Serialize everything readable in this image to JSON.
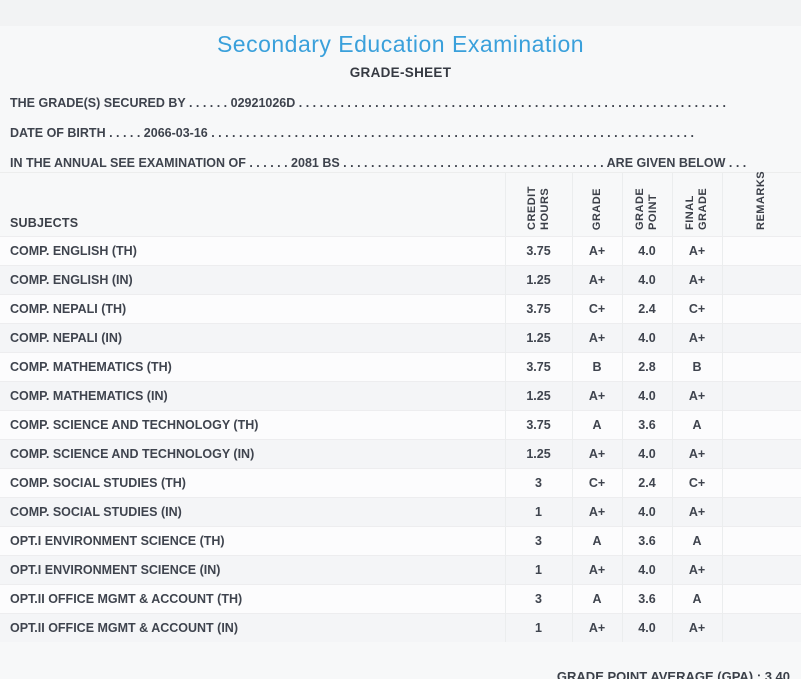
{
  "header": {
    "title": "Secondary Education Examination",
    "subtitle": "GRADE-SHEET"
  },
  "info_lines": [
    {
      "label": "THE GRADE(S) SECURED BY",
      "dots_mid": " . . . . . . ",
      "value": "02921026D",
      "dots_end": " . . . . . . . . . . . . . . . . . . . . . . . . . . . . . . . . . . . . . . . . . . . . . . . . . . . . . . . . . . . . . .",
      "suffix": ""
    },
    {
      "label": "DATE OF BIRTH",
      "dots_mid": " . . . . . ",
      "value": "2066-03-16",
      "dots_end": " . . . . . . . . . . . . . . . . . . . . . . . . . . . . . . . . . . . . . . . . . . . . . . . . . . . . . . . . . . . . . . . . . . . . . .",
      "suffix": ""
    },
    {
      "label": "IN THE ANNUAL SEE EXAMINATION OF",
      "dots_mid": " . . . . . . ",
      "value": "2081 BS",
      "dots_end": " . . . . . . . . . . . . . . . . . . . . . . . . . . . . . . . . . . . . . . ",
      "suffix": "ARE GIVEN BELOW . . ."
    }
  ],
  "table": {
    "subject_header": "SUBJECTS",
    "columns": [
      "CREDIT HOURS",
      "GRADE",
      "GRADE POINT",
      "FINAL GRADE",
      "REMARKS"
    ],
    "rows": [
      {
        "subject": "COMP. ENGLISH (TH)",
        "credit_hours": "3.75",
        "grade": "A+",
        "grade_point": "4.0",
        "final_grade": "A+",
        "remarks": ""
      },
      {
        "subject": "COMP. ENGLISH (IN)",
        "credit_hours": "1.25",
        "grade": "A+",
        "grade_point": "4.0",
        "final_grade": "A+",
        "remarks": ""
      },
      {
        "subject": "COMP. NEPALI (TH)",
        "credit_hours": "3.75",
        "grade": "C+",
        "grade_point": "2.4",
        "final_grade": "C+",
        "remarks": ""
      },
      {
        "subject": "COMP. NEPALI (IN)",
        "credit_hours": "1.25",
        "grade": "A+",
        "grade_point": "4.0",
        "final_grade": "A+",
        "remarks": ""
      },
      {
        "subject": "COMP. MATHEMATICS (TH)",
        "credit_hours": "3.75",
        "grade": "B",
        "grade_point": "2.8",
        "final_grade": "B",
        "remarks": ""
      },
      {
        "subject": "COMP. MATHEMATICS (IN)",
        "credit_hours": "1.25",
        "grade": "A+",
        "grade_point": "4.0",
        "final_grade": "A+",
        "remarks": ""
      },
      {
        "subject": "COMP. SCIENCE AND TECHNOLOGY (TH)",
        "credit_hours": "3.75",
        "grade": "A",
        "grade_point": "3.6",
        "final_grade": "A",
        "remarks": ""
      },
      {
        "subject": "COMP. SCIENCE AND TECHNOLOGY (IN)",
        "credit_hours": "1.25",
        "grade": "A+",
        "grade_point": "4.0",
        "final_grade": "A+",
        "remarks": ""
      },
      {
        "subject": "COMP. SOCIAL STUDIES (TH)",
        "credit_hours": "3",
        "grade": "C+",
        "grade_point": "2.4",
        "final_grade": "C+",
        "remarks": ""
      },
      {
        "subject": "COMP. SOCIAL STUDIES (IN)",
        "credit_hours": "1",
        "grade": "A+",
        "grade_point": "4.0",
        "final_grade": "A+",
        "remarks": ""
      },
      {
        "subject": "OPT.I ENVIRONMENT SCIENCE (TH)",
        "credit_hours": "3",
        "grade": "A",
        "grade_point": "3.6",
        "final_grade": "A",
        "remarks": ""
      },
      {
        "subject": "OPT.I ENVIRONMENT SCIENCE (IN)",
        "credit_hours": "1",
        "grade": "A+",
        "grade_point": "4.0",
        "final_grade": "A+",
        "remarks": ""
      },
      {
        "subject": "OPT.II OFFICE MGMT & ACCOUNT (TH)",
        "credit_hours": "3",
        "grade": "A",
        "grade_point": "3.6",
        "final_grade": "A",
        "remarks": ""
      },
      {
        "subject": "OPT.II OFFICE MGMT & ACCOUNT (IN)",
        "credit_hours": "1",
        "grade": "A+",
        "grade_point": "4.0",
        "final_grade": "A+",
        "remarks": ""
      }
    ]
  },
  "footer": {
    "gpa_label": "GRADE POINT AVERAGE (GPA) : ",
    "gpa_value": "3.40"
  },
  "colors": {
    "title_blue": "#3aa0db",
    "text_dark": "#3e434d",
    "page_background": "#f7f8f9"
  }
}
